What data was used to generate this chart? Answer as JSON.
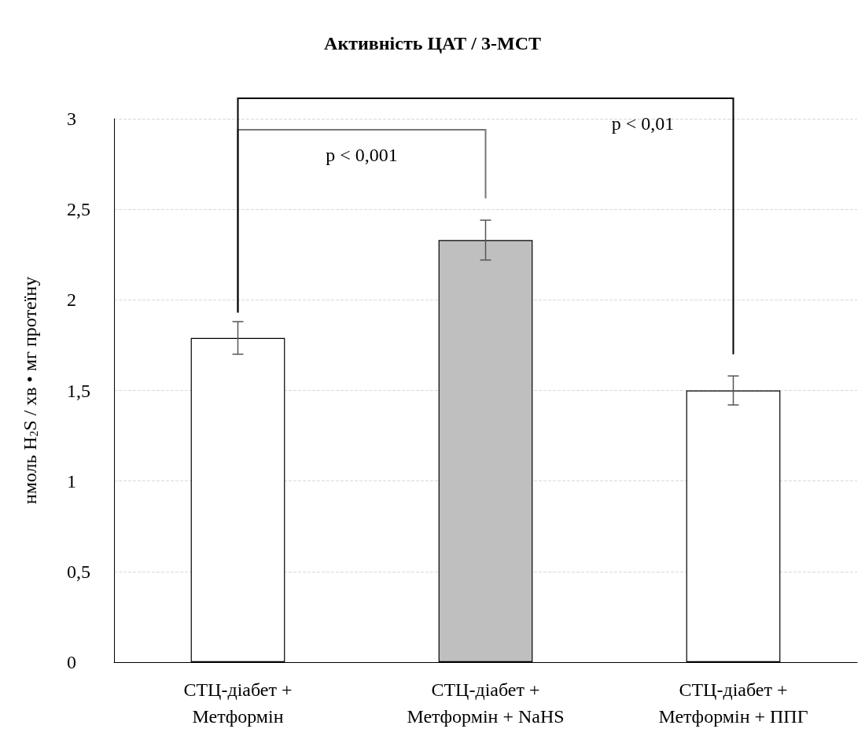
{
  "chart_data": {
    "type": "bar",
    "title": "Активність ЦАТ / 3-МСТ",
    "ylabel": "нмоль H$_{2}$S / хв • мг протеїну",
    "categories": [
      "СТЦ-діабет +\nМетформін",
      "СТЦ-діабет +\nМетформін + NaHS",
      "СТЦ-діабет +\nМетформін + ППГ"
    ],
    "values": [
      1.79,
      2.33,
      1.5
    ],
    "errors": [
      0.09,
      0.11,
      0.08
    ],
    "colors": [
      "#ffffff",
      "#bfbfbf",
      "#ffffff"
    ],
    "ylim": [
      0,
      3
    ],
    "yticks": [
      {
        "value": 0,
        "label": "0"
      },
      {
        "value": 0.5,
        "label": "0,5"
      },
      {
        "value": 1,
        "label": "1"
      },
      {
        "value": 1.5,
        "label": "1,5"
      },
      {
        "value": 2,
        "label": "2"
      },
      {
        "value": 2.5,
        "label": "2,5"
      },
      {
        "value": 3,
        "label": "3"
      }
    ],
    "grid": "y",
    "annotations": [
      "p < 0,001",
      "p < 0,01"
    ]
  }
}
